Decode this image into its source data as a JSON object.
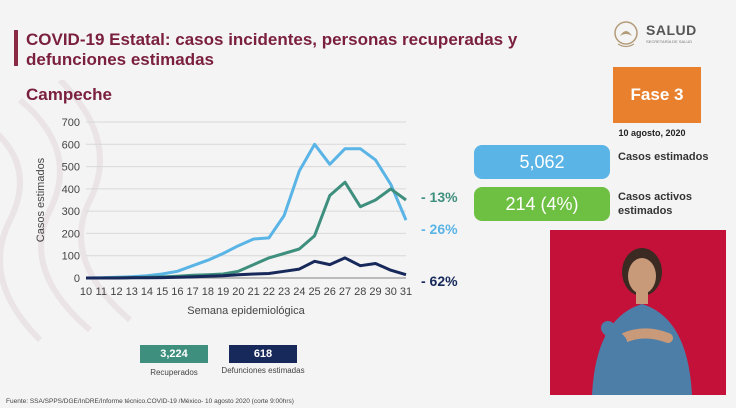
{
  "header": {
    "title": "COVID-19 Estatal: casos incidentes, personas recuperadas y defunciones estimadas",
    "subtitle": "Campeche",
    "logo_text": "SALUD",
    "logo_subtext": "SECRETARÍA DE SALUD"
  },
  "side": {
    "fase": "Fase 3",
    "date": "10 agosto, 2020",
    "casos_estimados_value": "5,062",
    "casos_estimados_label": "Casos estimados",
    "casos_activos_value": "214 (4%)",
    "casos_activos_label": "Casos activos estimados"
  },
  "chart_data": {
    "type": "line",
    "title": "",
    "xlabel": "Semana epidemiológica",
    "ylabel": "Casos estimados",
    "x": [
      10,
      11,
      12,
      13,
      14,
      15,
      16,
      17,
      18,
      19,
      20,
      21,
      22,
      23,
      24,
      25,
      26,
      27,
      28,
      29,
      30,
      31
    ],
    "ylim": [
      0,
      700
    ],
    "yticks": [
      0,
      100,
      200,
      300,
      400,
      500,
      600,
      700
    ],
    "grid": true,
    "series": [
      {
        "values": [
          0,
          1,
          3,
          6,
          10,
          18,
          30,
          55,
          80,
          110,
          145,
          175,
          180,
          280,
          480,
          600,
          510,
          580,
          580,
          530,
          420,
          260
        ],
        "color": "#5ab4e6",
        "end_label": "- 26%"
      },
      {
        "values": [
          0,
          0,
          1,
          2,
          3,
          5,
          8,
          12,
          15,
          18,
          30,
          60,
          90,
          110,
          130,
          190,
          370,
          430,
          320,
          350,
          400,
          350
        ],
        "color": "#3f8f7e",
        "end_label": "- 13%"
      },
      {
        "values": [
          0,
          0,
          0,
          1,
          1,
          2,
          3,
          5,
          8,
          10,
          15,
          18,
          20,
          30,
          40,
          75,
          60,
          90,
          55,
          65,
          35,
          15
        ],
        "color": "#17285a",
        "end_label": "- 62%"
      }
    ]
  },
  "totals": {
    "recuperados_value": "3,224",
    "recuperados_label": "Recuperados",
    "defunciones_value": "618",
    "defunciones_label": "Defunciones estimadas"
  },
  "footer": {
    "source": "Fuente: SSA/SPPS/DGE/InDRE/Informe técnico.COVID-19 /México- 10 agosto 2020 (corte 9:00hrs)"
  }
}
